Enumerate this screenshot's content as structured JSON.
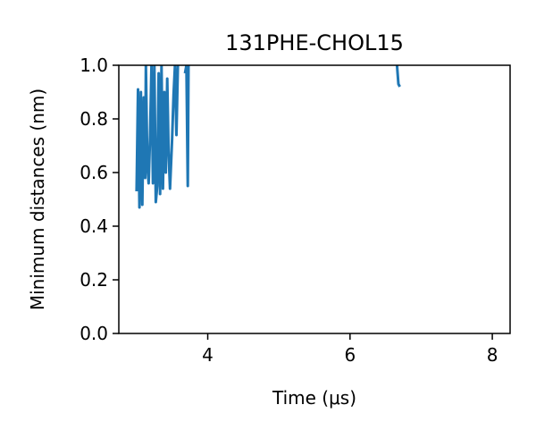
{
  "chart_data": {
    "type": "line",
    "title": "131PHE-CHOL15",
    "xlabel": "Time (μs)",
    "ylabel": "Minimum distances (nm)",
    "xlim": [
      2.75,
      8.25
    ],
    "ylim": [
      0.0,
      1.0
    ],
    "xticks": [
      4,
      6,
      8
    ],
    "xtick_labels": [
      "4",
      "6",
      "8"
    ],
    "yticks": [
      0.0,
      0.2,
      0.4,
      0.6,
      0.8,
      1.0
    ],
    "ytick_labels": [
      "0.0",
      "0.2",
      "0.4",
      "0.6",
      "0.8",
      "1.0"
    ],
    "grid": false,
    "series": [
      {
        "color": "#1f77b4",
        "segments": [
          [
            [
              3.0,
              0.53
            ],
            [
              3.02,
              0.91
            ],
            [
              3.04,
              0.47
            ],
            [
              3.06,
              0.9
            ],
            [
              3.08,
              0.48
            ],
            [
              3.1,
              0.88
            ],
            [
              3.12,
              0.58
            ],
            [
              3.13,
              1.0
            ],
            [
              3.15,
              0.63
            ],
            [
              3.17,
              0.56
            ],
            [
              3.19,
              0.74
            ],
            [
              3.21,
              1.0
            ],
            [
              3.23,
              0.56
            ],
            [
              3.25,
              1.0
            ],
            [
              3.27,
              0.49
            ],
            [
              3.29,
              0.55
            ],
            [
              3.31,
              0.97
            ],
            [
              3.33,
              0.52
            ],
            [
              3.35,
              1.0
            ],
            [
              3.37,
              0.54
            ],
            [
              3.39,
              0.9
            ],
            [
              3.41,
              0.6
            ],
            [
              3.43,
              0.95
            ],
            [
              3.45,
              0.68
            ],
            [
              3.47,
              0.54
            ],
            [
              3.5,
              0.73
            ],
            [
              3.52,
              0.89
            ],
            [
              3.54,
              1.0
            ],
            [
              3.56,
              0.74
            ],
            [
              3.58,
              1.0
            ]
          ],
          [
            [
              3.68,
              0.97
            ],
            [
              3.7,
              1.0
            ],
            [
              3.72,
              0.55
            ],
            [
              3.73,
              1.0
            ]
          ],
          [
            [
              6.66,
              1.0
            ],
            [
              6.68,
              0.93
            ],
            [
              6.7,
              0.92
            ]
          ]
        ]
      }
    ]
  }
}
